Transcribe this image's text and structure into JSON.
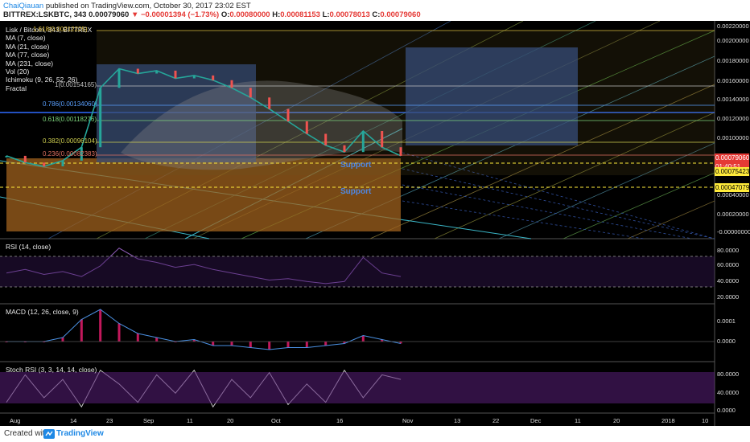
{
  "header": {
    "author": "ChaiQiauan",
    "published_text": "published on TradingView.com, October 30, 2017 23:02 EST",
    "symbol": "BITTREX:LSKBTC, 343",
    "last": "0.00079060",
    "change": "▼ −0.00001394 (−1.73%)",
    "o_label": "O:",
    "o_val": "0.00080000",
    "h_label": "H:",
    "h_val": "0.00081153",
    "l_label": "L:",
    "l_val": "0.00078013",
    "c_label": "C:",
    "c_val": "0.00079060"
  },
  "legend": {
    "title": "Lisk / Bitcoin, 343, BITTREX",
    "items": [
      "MA (7, close)",
      "MA (21, close)",
      "MA (77, close)",
      "MA (231, close)",
      "Vol (20)",
      "Ichimoku (9, 26, 52, 26)",
      "Fractal"
    ]
  },
  "fib_levels": [
    {
      "label": "1.618(0.00212225)",
      "color": "#e0c040"
    },
    {
      "label": "1(0.00154165)",
      "color": "#c0c0c0"
    },
    {
      "label": "0.786(0.00134060)",
      "color": "#5aa0ff"
    },
    {
      "label": "0.618(0.00118276)",
      "color": "#7cd37c"
    },
    {
      "label": "0.382(0.00096104)",
      "color": "#d0d050"
    },
    {
      "label": "0.236(0.00082383)",
      "color": "#e07060"
    }
  ],
  "annotations": {
    "support_1": "Support",
    "support_2": "Support"
  },
  "panes": {
    "rsi": "RSI (14, close)",
    "macd": "MACD (12, 26, close, 9)",
    "stoch": "Stoch RSI (3, 3, 14, 14, close)"
  },
  "price_axis": [
    "0.00220000",
    "0.00200000",
    "0.00180000",
    "0.00160000",
    "0.00140000",
    "0.00120000",
    "0.00100000",
    "0.00040000",
    "0.00020000",
    "-0.00000000"
  ],
  "price_tags": [
    {
      "text": "0.00079060",
      "bg": "#e53935",
      "fg": "#ffffff"
    },
    {
      "text": "01:40:51",
      "bg": "#e53935",
      "fg": "#ffffff"
    },
    {
      "text": "0.00075423",
      "bg": "#ffeb3b",
      "fg": "#000000"
    },
    {
      "text": "0.00047079",
      "bg": "#ffeb3b",
      "fg": "#000000"
    }
  ],
  "rsi_axis": [
    "80.0000",
    "60.0000",
    "40.0000",
    "20.0000"
  ],
  "macd_axis": [
    "0.0001",
    "0.0000"
  ],
  "stoch_axis": [
    "80.0000",
    "40.0000",
    "0.0000"
  ],
  "time_axis": [
    "Aug",
    "14",
    "23",
    "Sep",
    "11",
    "20",
    "Oct",
    "16",
    "Nov",
    "13",
    "22",
    "Dec",
    "11",
    "20",
    "2018",
    "10"
  ],
  "footer": {
    "created": "Created with",
    "brand": "TradingView"
  },
  "colors": {
    "background": "#000000",
    "accent": "#1e88e5",
    "down": "#e53935",
    "up": "#26a69a",
    "zone_orange": "#a0621e",
    "zone_blue": "#2b4a8c"
  },
  "chart_data": [
    {
      "type": "line",
      "name": "price",
      "ylim": [
        0,
        0.0022
      ],
      "x": [
        "Aug 1",
        "Aug 7",
        "Aug 14",
        "Aug 18",
        "Aug 20",
        "Aug 23",
        "Aug 27",
        "Sep 1",
        "Sep 6",
        "Sep 11",
        "Sep 15",
        "Sep 20",
        "Sep 24",
        "Sep 28",
        "Oct 1",
        "Oct 6",
        "Oct 11",
        "Oct 16",
        "Oct 21",
        "Oct 24",
        "Oct 27",
        "Oct 30"
      ],
      "values": [
        0.00079,
        0.00072,
        0.00068,
        0.00074,
        0.00088,
        0.0015,
        0.0017,
        0.00165,
        0.00168,
        0.0016,
        0.00163,
        0.00158,
        0.0015,
        0.0014,
        0.00128,
        0.00115,
        0.00102,
        0.0009,
        0.00083,
        0.00105,
        0.00088,
        0.00079
      ]
    },
    {
      "type": "line",
      "name": "RSI",
      "ylim": [
        10,
        95
      ],
      "values": [
        50,
        55,
        48,
        52,
        45,
        60,
        85,
        70,
        65,
        58,
        62,
        55,
        50,
        45,
        40,
        42,
        38,
        35,
        38,
        72,
        50,
        45
      ]
    },
    {
      "type": "line",
      "name": "MACD",
      "values": [
        0,
        0,
        0,
        2e-05,
        0.00011,
        0.00016,
        9e-05,
        4e-05,
        2e-05,
        0,
        1e-05,
        -2e-05,
        -2e-05,
        -3e-05,
        -4e-05,
        -3e-05,
        -3e-05,
        -2e-05,
        -1e-05,
        3e-05,
        1e-05,
        -1e-05
      ]
    },
    {
      "type": "line",
      "name": "Stoch RSI",
      "ylim": [
        0,
        100
      ],
      "values": [
        20,
        80,
        30,
        70,
        10,
        90,
        60,
        20,
        80,
        40,
        90,
        10,
        70,
        30,
        85,
        15,
        60,
        20,
        90,
        30,
        80,
        70
      ]
    }
  ]
}
